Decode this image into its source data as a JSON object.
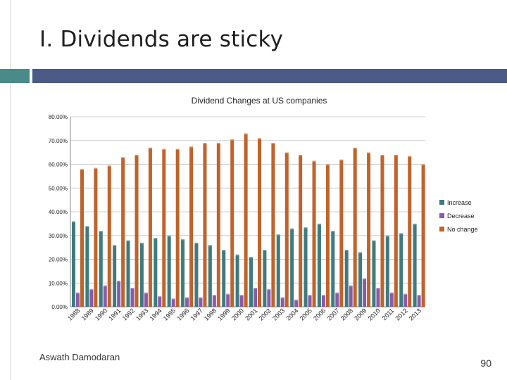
{
  "slide": {
    "title": "I. Dividends are sticky",
    "author": "Aswath Damodaran",
    "page_number": "90"
  },
  "colors": {
    "accent_square": "#4a8a88",
    "accent_bar": "#4b5a86",
    "increase": "#3f7a7e",
    "decrease": "#8a5ba8",
    "no_change": "#c0632b"
  },
  "chart_data": {
    "type": "bar",
    "title": "Dividend Changes at US companies",
    "xlabel": "",
    "ylabel": "",
    "ylim": [
      0,
      80
    ],
    "yticks": [
      "0.00%",
      "10.00%",
      "20.00%",
      "30.00%",
      "40.00%",
      "50.00%",
      "60.00%",
      "70.00%",
      "80.00%"
    ],
    "grid": true,
    "legend_position": "right",
    "categories": [
      "1988",
      "1989",
      "1990",
      "1991",
      "1992",
      "1993",
      "1994",
      "1995",
      "1996",
      "1997",
      "1998",
      "1999",
      "2000",
      "2001",
      "2002",
      "2003",
      "2004",
      "2005",
      "2006",
      "2007",
      "2008",
      "2009",
      "2010",
      "2011",
      "2012",
      "2013"
    ],
    "series": [
      {
        "name": "Increase",
        "values": [
          36,
          34,
          32,
          26,
          28,
          27,
          29,
          30,
          28.5,
          27,
          26,
          24,
          22,
          21,
          24,
          30.5,
          33,
          33.5,
          35,
          32,
          24,
          23,
          28,
          30,
          31,
          35
        ]
      },
      {
        "name": "Decrease",
        "values": [
          6,
          7.5,
          9,
          11,
          8,
          6,
          4.5,
          3.5,
          4,
          4,
          5,
          5.5,
          5,
          8,
          7.5,
          4,
          3,
          5,
          5,
          6,
          9,
          12,
          8,
          6,
          5.5,
          5
        ]
      },
      {
        "name": "No change",
        "values": [
          58,
          58.5,
          59.5,
          63,
          64,
          67,
          66.5,
          66.5,
          67.5,
          69,
          69,
          70.5,
          73,
          71,
          69,
          65,
          64,
          61.5,
          60,
          62,
          67,
          65,
          64,
          64,
          63.5,
          60
        ]
      }
    ]
  }
}
